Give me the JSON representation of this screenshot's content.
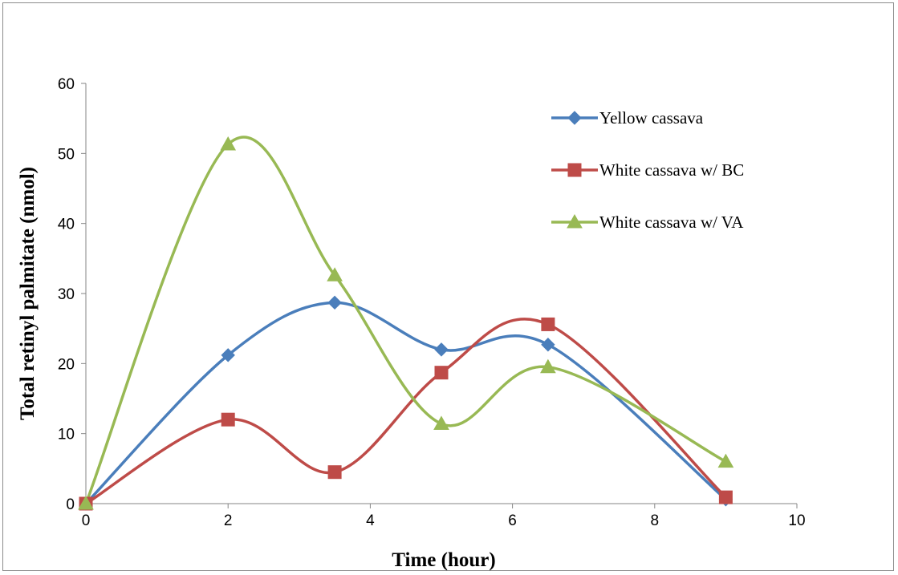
{
  "chart_data": {
    "type": "line",
    "smooth": true,
    "xlabel": "Time (hour)",
    "ylabel": "Total retinyl palmitate (nmol)",
    "xlim": [
      0,
      10
    ],
    "ylim": [
      0,
      60
    ],
    "xticks": [
      0,
      2,
      4,
      6,
      8,
      10
    ],
    "yticks": [
      0,
      10,
      20,
      30,
      40,
      50,
      60
    ],
    "grid": false,
    "legend_position": "top-right",
    "series": [
      {
        "name": "Yellow cassava",
        "color": "#4a7ebb",
        "marker": "diamond",
        "x": [
          0,
          2,
          3.5,
          5,
          6.5,
          9
        ],
        "values": [
          0,
          21.2,
          28.7,
          22.0,
          22.7,
          0.6
        ]
      },
      {
        "name": "White cassava w/ BC",
        "color": "#be4b48",
        "marker": "square",
        "x": [
          0,
          2,
          3.5,
          5,
          6.5,
          9
        ],
        "values": [
          0,
          12.0,
          4.5,
          18.7,
          25.6,
          0.9
        ]
      },
      {
        "name": "White cassava w/ VA",
        "color": "#98b954",
        "marker": "triangle",
        "x": [
          0,
          2,
          3.5,
          5,
          6.5,
          9
        ],
        "values": [
          0,
          51.3,
          32.6,
          11.4,
          19.5,
          6.0
        ]
      }
    ]
  }
}
